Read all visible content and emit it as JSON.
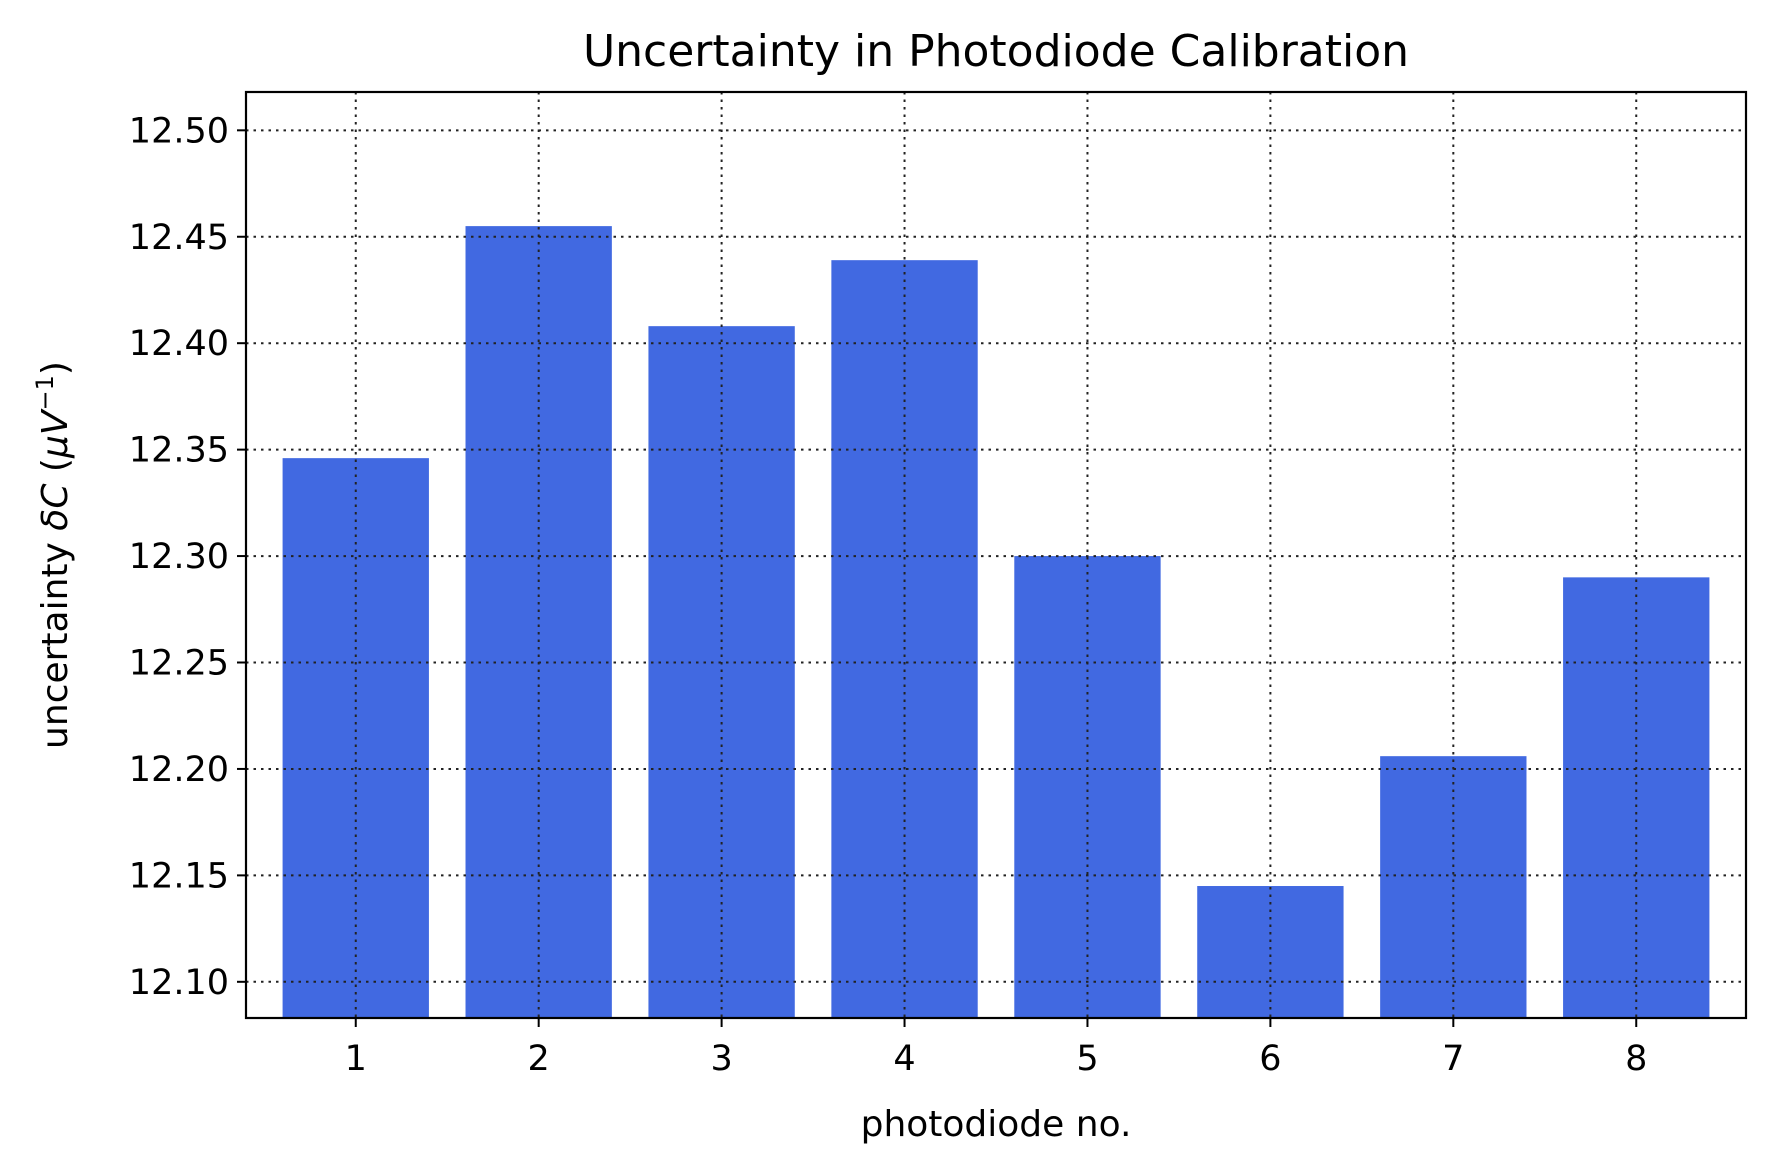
{
  "chart_data": {
    "type": "bar",
    "title": "Uncertainty in Photodiode Calibration",
    "xlabel": "photodiode no.",
    "ylabel_text": "uncertainty ",
    "ylabel_symbol": "δC",
    "ylabel_unit_open": " (",
    "ylabel_unit_mu": "μV",
    "ylabel_unit_exp": "−1",
    "ylabel_unit_close": ")",
    "categories": [
      "1",
      "2",
      "3",
      "4",
      "5",
      "6",
      "7",
      "8"
    ],
    "values": [
      12.346,
      12.455,
      12.408,
      12.439,
      12.3,
      12.145,
      12.206,
      12.29
    ],
    "ylim": [
      12.083,
      12.518
    ],
    "yticks": [
      12.1,
      12.15,
      12.2,
      12.25,
      12.3,
      12.35,
      12.4,
      12.45,
      12.5
    ],
    "ytick_labels": [
      "12.10",
      "12.15",
      "12.20",
      "12.25",
      "12.30",
      "12.35",
      "12.40",
      "12.45",
      "12.50"
    ],
    "grid": true,
    "bar_color": "#4169e1"
  }
}
